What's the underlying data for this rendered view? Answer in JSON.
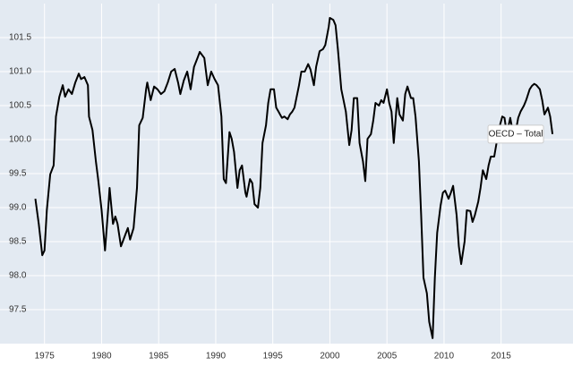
{
  "chart_data": {
    "type": "line",
    "x": [
      1974.2,
      1974.5,
      1974.8,
      1975.0,
      1975.2,
      1975.5,
      1975.8,
      1976.0,
      1976.3,
      1976.6,
      1976.8,
      1977.1,
      1977.4,
      1977.7,
      1978.0,
      1978.2,
      1978.5,
      1978.8,
      1978.9,
      1979.2,
      1979.5,
      1979.7,
      1980.0,
      1980.3,
      1980.6,
      1980.7,
      1981.0,
      1981.2,
      1981.4,
      1981.7,
      1982.1,
      1982.3,
      1982.5,
      1982.8,
      1983.1,
      1983.3,
      1983.6,
      1983.9,
      1984.0,
      1984.3,
      1984.6,
      1984.9,
      1985.2,
      1985.5,
      1985.8,
      1986.1,
      1986.4,
      1986.7,
      1986.9,
      1987.2,
      1987.5,
      1987.8,
      1988.1,
      1988.4,
      1988.6,
      1989.0,
      1989.3,
      1989.6,
      1989.9,
      1990.2,
      1990.5,
      1990.7,
      1990.9,
      1991.2,
      1991.4,
      1991.6,
      1991.9,
      1992.1,
      1992.3,
      1992.6,
      1992.7,
      1993.0,
      1993.2,
      1993.4,
      1993.7,
      1993.9,
      1994.1,
      1994.4,
      1994.6,
      1994.8,
      1995.1,
      1995.3,
      1995.5,
      1995.8,
      1996.0,
      1996.3,
      1996.5,
      1996.7,
      1996.9,
      1997.3,
      1997.5,
      1997.8,
      1998.1,
      1998.3,
      1998.6,
      1998.8,
      1999.1,
      1999.4,
      1999.6,
      1999.9,
      2000.0,
      2000.3,
      2000.5,
      2000.7,
      2001.0,
      2001.2,
      2001.4,
      2001.7,
      2001.9,
      2002.1,
      2002.4,
      2002.6,
      2002.9,
      2003.1,
      2003.3,
      2003.6,
      2003.8,
      2004.0,
      2004.3,
      2004.5,
      2004.7,
      2005.0,
      2005.2,
      2005.4,
      2005.6,
      2005.9,
      2006.1,
      2006.4,
      2006.6,
      2006.8,
      2007.1,
      2007.3,
      2007.5,
      2007.8,
      2008.0,
      2008.2,
      2008.5,
      2008.7,
      2009.0,
      2009.2,
      2009.4,
      2009.7,
      2009.9,
      2010.1,
      2010.4,
      2010.6,
      2010.8,
      2011.1,
      2011.3,
      2011.5,
      2011.8,
      2012.0,
      2012.3,
      2012.5,
      2012.7,
      2013.0,
      2013.2,
      2013.4,
      2013.7,
      2013.9,
      2014.1,
      2014.4,
      2014.6,
      2014.9,
      2015.1,
      2015.3,
      2015.5,
      2015.8,
      2016.0,
      2016.3,
      2016.5,
      2016.7,
      2017.0,
      2017.2,
      2017.5,
      2017.7,
      2017.9,
      2018.1,
      2018.4,
      2018.6,
      2018.8,
      2019.1,
      2019.3,
      2019.5
    ],
    "series": [
      {
        "name": "OECD – Total",
        "color": "#000000",
        "values": [
          99.13,
          98.76,
          98.3,
          98.37,
          98.96,
          99.49,
          99.62,
          100.34,
          100.63,
          100.8,
          100.63,
          100.74,
          100.67,
          100.84,
          100.97,
          100.89,
          100.92,
          100.8,
          100.34,
          100.14,
          99.68,
          99.42,
          98.96,
          98.37,
          99.03,
          99.29,
          98.76,
          98.87,
          98.76,
          98.43,
          98.61,
          98.7,
          98.53,
          98.7,
          99.29,
          100.21,
          100.32,
          100.74,
          100.84,
          100.58,
          100.78,
          100.74,
          100.67,
          100.71,
          100.84,
          101.0,
          101.04,
          100.84,
          100.67,
          100.87,
          101.0,
          100.74,
          101.07,
          101.2,
          101.29,
          101.2,
          100.8,
          101.0,
          100.89,
          100.8,
          100.34,
          99.42,
          99.36,
          100.11,
          100.01,
          99.82,
          99.29,
          99.55,
          99.62,
          99.22,
          99.16,
          99.42,
          99.36,
          99.05,
          99.0,
          99.29,
          99.95,
          100.21,
          100.54,
          100.74,
          100.74,
          100.47,
          100.41,
          100.32,
          100.34,
          100.3,
          100.37,
          100.41,
          100.47,
          100.8,
          101.0,
          101.0,
          101.11,
          101.03,
          100.8,
          101.07,
          101.3,
          101.33,
          101.39,
          101.66,
          101.79,
          101.76,
          101.68,
          101.33,
          100.74,
          100.58,
          100.41,
          99.92,
          100.14,
          100.61,
          100.61,
          99.95,
          99.68,
          99.39,
          100.01,
          100.08,
          100.28,
          100.54,
          100.5,
          100.58,
          100.54,
          100.74,
          100.54,
          100.41,
          99.95,
          100.61,
          100.37,
          100.28,
          100.67,
          100.78,
          100.61,
          100.61,
          100.34,
          99.68,
          98.89,
          97.97,
          97.74,
          97.32,
          97.08,
          97.97,
          98.63,
          99.03,
          99.22,
          99.25,
          99.13,
          99.22,
          99.32,
          98.89,
          98.43,
          98.17,
          98.5,
          98.96,
          98.95,
          98.79,
          98.89,
          99.09,
          99.29,
          99.55,
          99.42,
          99.62,
          99.75,
          99.75,
          99.95,
          100.21,
          100.34,
          100.32,
          100.08,
          100.32,
          100.14,
          100.14,
          100.32,
          100.41,
          100.5,
          100.58,
          100.74,
          100.79,
          100.82,
          100.8,
          100.74,
          100.58,
          100.37,
          100.47,
          100.34,
          100.08
        ]
      }
    ],
    "xlim": [
      1971.1,
      2021.3
    ],
    "xticks": [
      1975,
      1980,
      1985,
      1990,
      1995,
      2000,
      2005,
      2010,
      2015
    ],
    "ylim": [
      97.0,
      102.0
    ],
    "yticks": [
      97.5,
      {
        "value": 98,
        "label": "98.0"
      },
      98.5,
      {
        "value": 99,
        "label": "99.0"
      },
      99.5,
      {
        "value": 100,
        "label": "100.0"
      },
      100.5,
      {
        "value": 101,
        "label": "101.0"
      },
      101.5
    ],
    "grid": true
  }
}
